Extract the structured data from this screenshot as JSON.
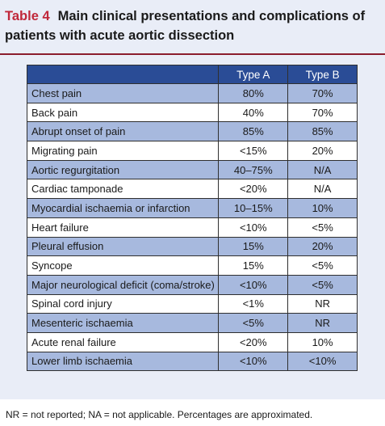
{
  "title": {
    "tag": "Table 4",
    "text": "Main clinical presentations and complications of patients with acute aortic dissection"
  },
  "table": {
    "columns": [
      "",
      "Type A",
      "Type B"
    ],
    "rows": [
      {
        "label": "Chest pain",
        "type_a": "80%",
        "type_b": "70%"
      },
      {
        "label": "Back pain",
        "type_a": "40%",
        "type_b": "70%"
      },
      {
        "label": "Abrupt onset of pain",
        "type_a": "85%",
        "type_b": "85%"
      },
      {
        "label": "Migrating pain",
        "type_a": "<15%",
        "type_b": "20%"
      },
      {
        "label": "Aortic regurgitation",
        "type_a": "40–75%",
        "type_b": "N/A"
      },
      {
        "label": "Cardiac tamponade",
        "type_a": "<20%",
        "type_b": "N/A"
      },
      {
        "label": "Myocardial ischaemia or infarction",
        "type_a": "10–15%",
        "type_b": "10%"
      },
      {
        "label": "Heart failure",
        "type_a": "<10%",
        "type_b": "<5%"
      },
      {
        "label": "Pleural effusion",
        "type_a": "15%",
        "type_b": "20%"
      },
      {
        "label": "Syncope",
        "type_a": "15%",
        "type_b": "<5%"
      },
      {
        "label": "Major neurological deficit (coma/stroke)",
        "type_a": "<10%",
        "type_b": "<5%"
      },
      {
        "label": "Spinal cord injury",
        "type_a": "<1%",
        "type_b": "NR"
      },
      {
        "label": "Mesenteric ischaemia",
        "type_a": "<5%",
        "type_b": "NR"
      },
      {
        "label": "Acute renal failure",
        "type_a": "<20%",
        "type_b": "10%"
      },
      {
        "label": "Lower limb ischaemia",
        "type_a": "<10%",
        "type_b": "<10%"
      }
    ]
  },
  "footnote": "NR = not reported; NA = not applicable. Percentages are approximated.",
  "colors": {
    "tag": "#c0273a",
    "header_bg": "#2a4c96",
    "row_shaded": "#a7b9de",
    "caption_bg": "#e9edf7",
    "rule": "#8b1c2c"
  }
}
